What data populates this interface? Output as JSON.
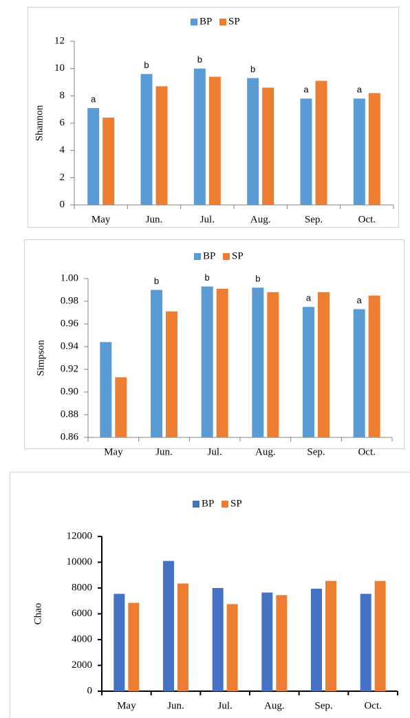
{
  "chart_data": [
    {
      "type": "bar",
      "y_label": "Shannon",
      "categories": [
        "May",
        "Jun.",
        "Jul.",
        "Aug.",
        "Sep.",
        "Oct."
      ],
      "series": [
        {
          "name": "BP",
          "color": "#5b9bd5",
          "values": [
            7.1,
            9.6,
            10.0,
            9.3,
            7.8,
            7.8
          ],
          "annotations": [
            "a",
            "b",
            "b",
            "b",
            "a",
            "a"
          ]
        },
        {
          "name": "SP",
          "color": "#ed7d31",
          "values": [
            6.4,
            8.7,
            9.4,
            8.6,
            9.1,
            8.2
          ]
        }
      ],
      "ylim": [
        0,
        12
      ],
      "yticks": [
        0,
        2,
        4,
        6,
        8,
        10,
        12
      ],
      "legend": "top"
    },
    {
      "type": "bar",
      "y_label": "Simpson",
      "categories": [
        "May",
        "Jun.",
        "Jul.",
        "Aug.",
        "Sep.",
        "Oct."
      ],
      "series": [
        {
          "name": "BP",
          "color": "#5b9bd5",
          "values": [
            0.944,
            0.99,
            0.993,
            0.992,
            0.975,
            0.973
          ],
          "annotations": [
            null,
            "b",
            "b",
            "b",
            "a",
            "a"
          ]
        },
        {
          "name": "SP",
          "color": "#ed7d31",
          "values": [
            0.913,
            0.971,
            0.991,
            0.988,
            0.988,
            0.985
          ]
        }
      ],
      "ylim": [
        0.86,
        1.0
      ],
      "yticks": [
        {
          "value": 0.86,
          "label": "0.86"
        },
        {
          "value": 0.88,
          "label": "0.88"
        },
        {
          "value": 0.9,
          "label": "0.90"
        },
        {
          "value": 0.92,
          "label": "0.92"
        },
        {
          "value": 0.94,
          "label": "0.94"
        },
        {
          "value": 0.96,
          "label": "0.96"
        },
        {
          "value": 0.98,
          "label": "0.98"
        },
        {
          "value": 1.0,
          "label": "1.00"
        }
      ],
      "legend": "top"
    },
    {
      "type": "bar",
      "y_label": "Chao",
      "categories": [
        "May",
        "Jun.",
        "Jul.",
        "Aug.",
        "Sep.",
        "Oct."
      ],
      "series": [
        {
          "name": "BP",
          "color": "#4472c4",
          "values": [
            7550,
            10100,
            8000,
            7650,
            7950,
            7550
          ]
        },
        {
          "name": "SP",
          "color": "#ed7d31",
          "values": [
            6850,
            8350,
            6750,
            7450,
            8550,
            8550
          ]
        }
      ],
      "ylim": [
        0,
        12000
      ],
      "yticks": [
        0,
        2000,
        4000,
        6000,
        8000,
        10000,
        12000
      ],
      "legend": "top"
    }
  ]
}
